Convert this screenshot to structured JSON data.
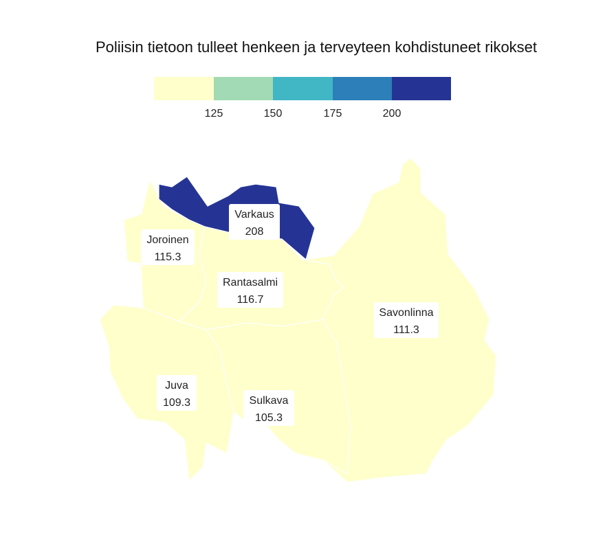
{
  "title": "Poliisin tietoon tulleet henkeen ja terveyteen kohdistuneet rikokset",
  "legend": {
    "breaks": [
      "125",
      "150",
      "175",
      "200"
    ],
    "colors": [
      "#ffffcc",
      "#a1dab4",
      "#41b6c4",
      "#2c7fb8",
      "#253494"
    ]
  },
  "regions": [
    {
      "name": "Varkaus",
      "value": "208",
      "color": "#253494"
    },
    {
      "name": "Joroinen",
      "value": "115.3",
      "color": "#ffffcc"
    },
    {
      "name": "Rantasalmi",
      "value": "116.7",
      "color": "#ffffcc"
    },
    {
      "name": "Savonlinna",
      "value": "111.3",
      "color": "#ffffcc"
    },
    {
      "name": "Juva",
      "value": "109.3",
      "color": "#ffffcc"
    },
    {
      "name": "Sulkava",
      "value": "105.3",
      "color": "#ffffcc"
    }
  ]
}
